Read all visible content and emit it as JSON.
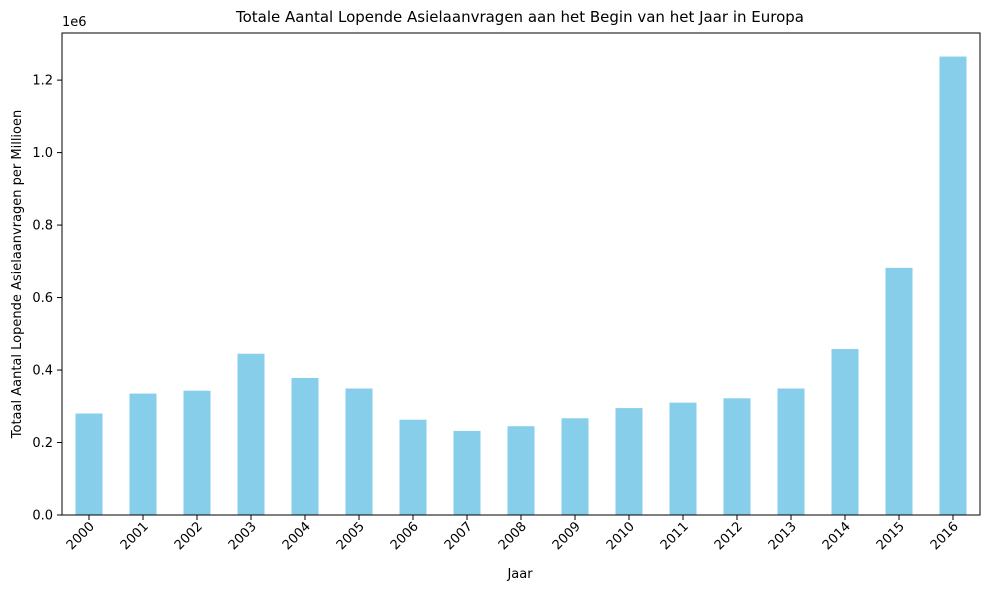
{
  "chart_data": {
    "type": "bar",
    "title": "Totale Aantal Lopende Asielaanvragen aan het Begin van het Jaar in Europa",
    "xlabel": "Jaar",
    "ylabel": "Totaal Aantal Lopende Asielaanvragen per Millioen",
    "y_offset_label": "1e6",
    "categories": [
      "2000",
      "2001",
      "2002",
      "2003",
      "2004",
      "2005",
      "2006",
      "2007",
      "2008",
      "2009",
      "2010",
      "2011",
      "2012",
      "2013",
      "2014",
      "2015",
      "2016"
    ],
    "values": [
      280000,
      335000,
      343000,
      445000,
      378000,
      349000,
      263000,
      232000,
      245000,
      267000,
      295000,
      310000,
      322000,
      349000,
      458000,
      682000,
      1265000
    ],
    "y_ticks": [
      0.0,
      0.2,
      0.4,
      0.6,
      0.8,
      1.0,
      1.2
    ],
    "ylim": [
      0,
      1330000
    ],
    "bar_color": "#87ceeb",
    "grid": false,
    "legend": "none"
  }
}
